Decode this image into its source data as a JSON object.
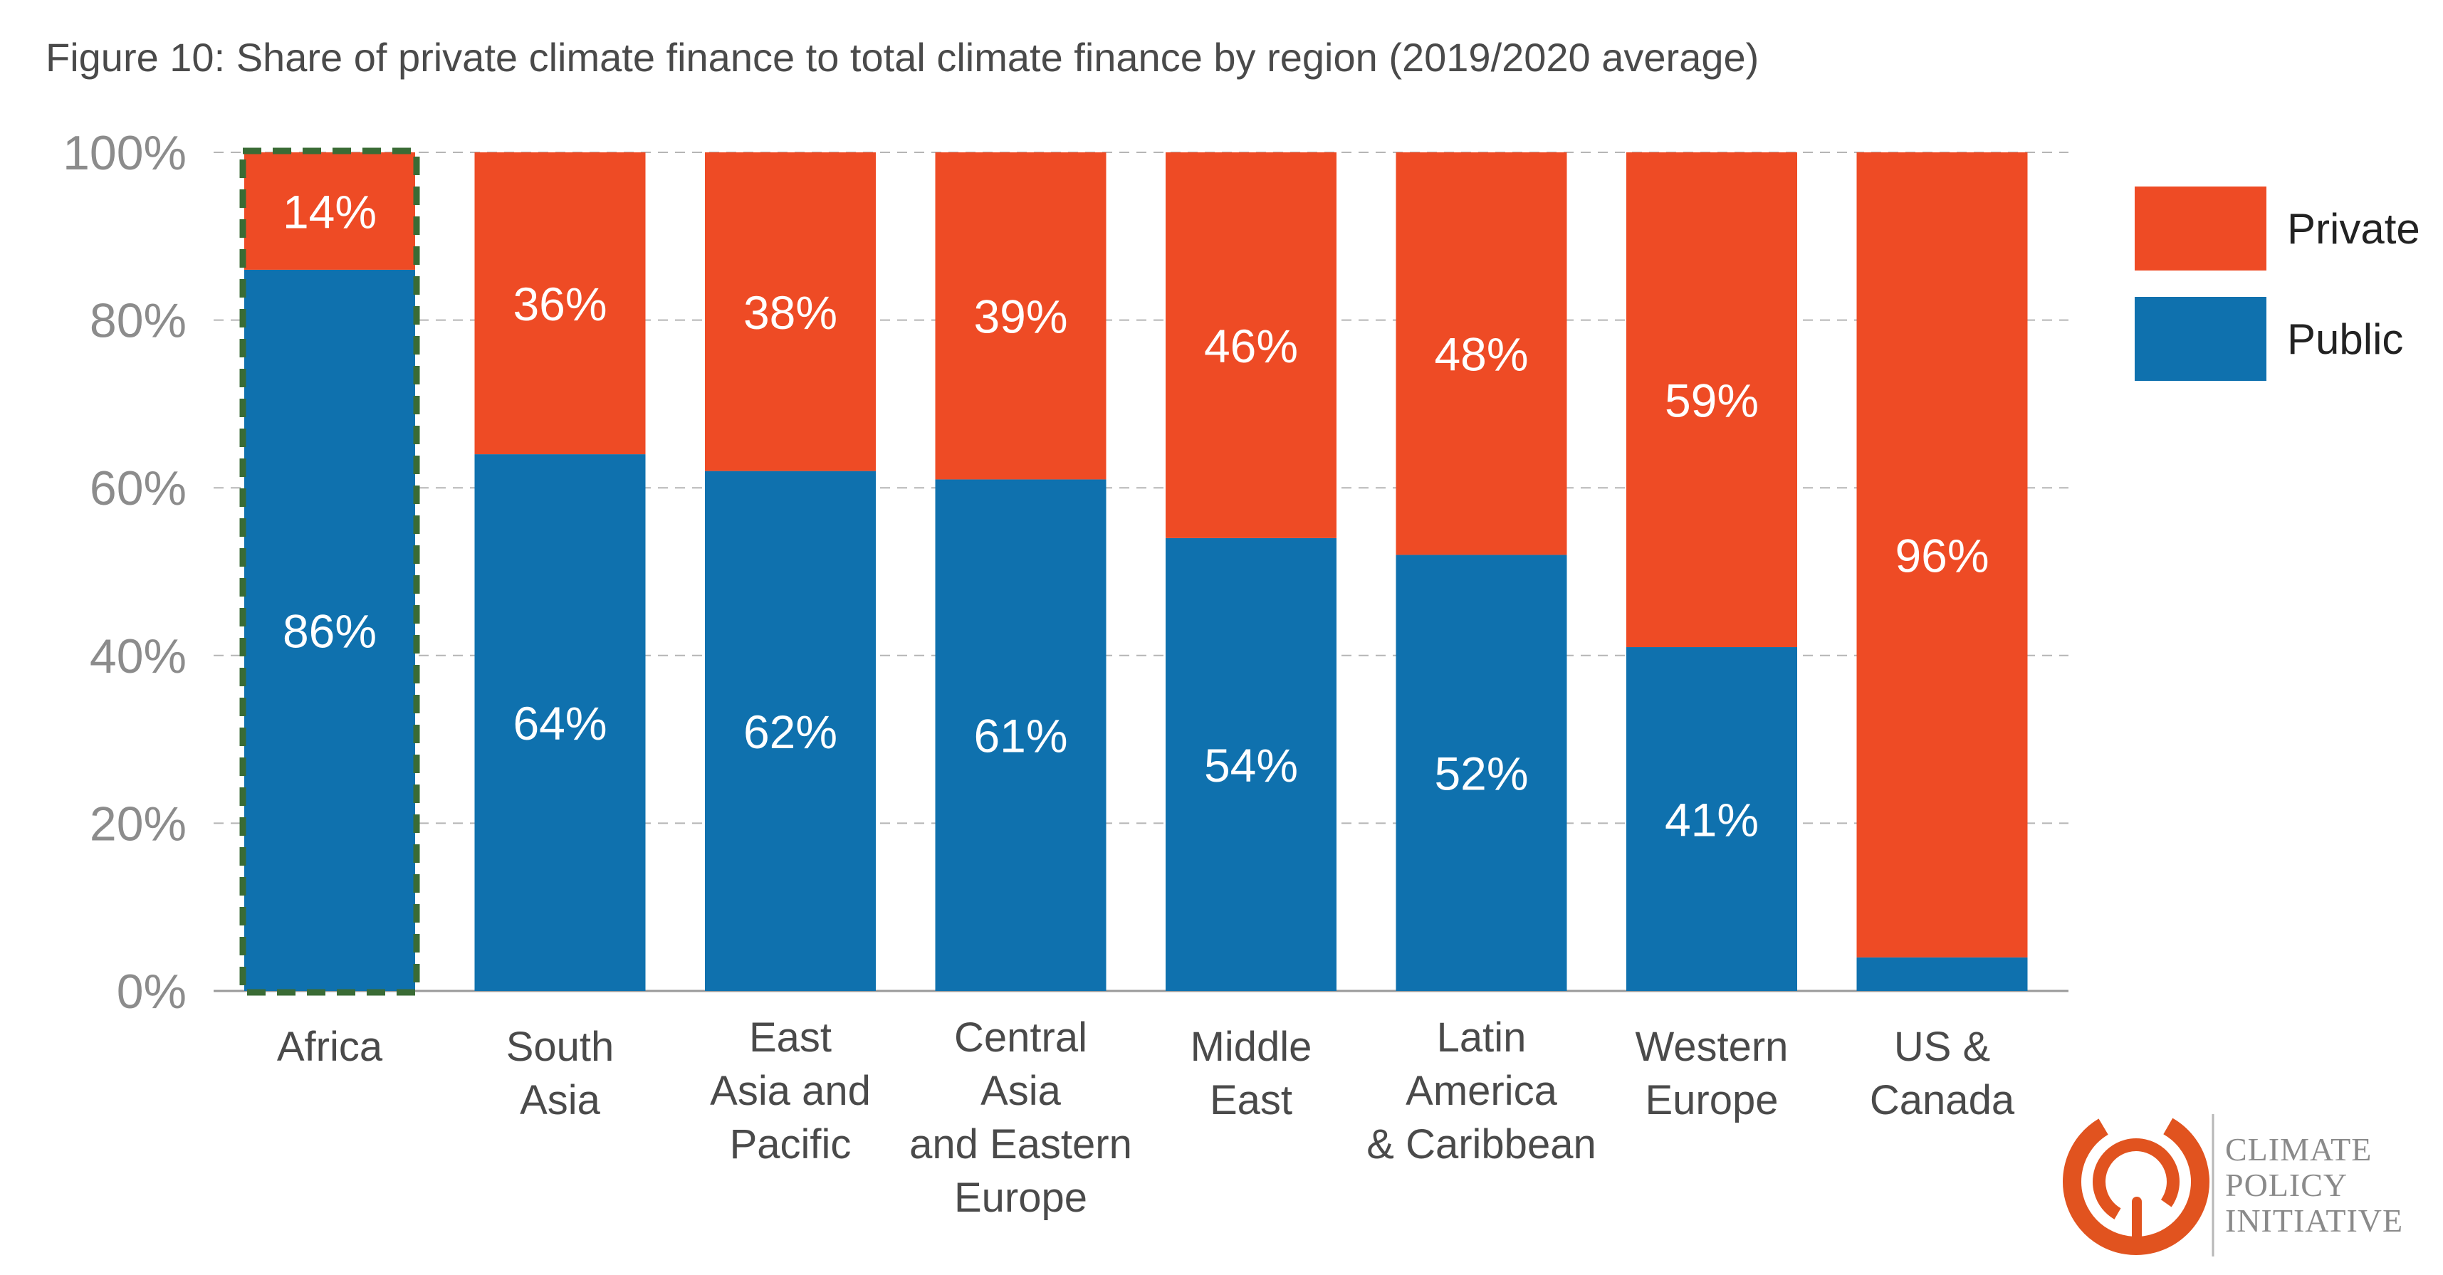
{
  "chart_data": {
    "type": "bar",
    "stacked": true,
    "title": "Figure 10: Share of private climate finance to total climate finance by region (2019/2020 average)",
    "categories": [
      [
        "Africa"
      ],
      [
        "South",
        "Asia"
      ],
      [
        "East",
        "Asia and",
        "Pacific"
      ],
      [
        "Central",
        "Asia",
        "and Eastern",
        "Europe"
      ],
      [
        "Middle",
        "East"
      ],
      [
        "Latin",
        "America",
        "& Caribbean"
      ],
      [
        "Western",
        "Europe"
      ],
      [
        "US &",
        "Canada"
      ]
    ],
    "series": [
      {
        "name": "Public",
        "color": "#0f71ae",
        "values": [
          86,
          64,
          62,
          61,
          54,
          52,
          41,
          4
        ],
        "labels": [
          "86%",
          "64%",
          "62%",
          "61%",
          "54%",
          "52%",
          "41%",
          ""
        ]
      },
      {
        "name": "Private",
        "color": "#ee4b25",
        "values": [
          14,
          36,
          38,
          39,
          46,
          48,
          59,
          96
        ],
        "labels": [
          "14%",
          "36%",
          "38%",
          "39%",
          "46%",
          "48%",
          "59%",
          "96%"
        ]
      }
    ],
    "ylim": [
      0,
      100
    ],
    "yticks": [
      "0%",
      "20%",
      "40%",
      "60%",
      "80%",
      "100%"
    ],
    "grid": "horizontal-dashed",
    "legend": "right",
    "highlight": {
      "category_index": 0,
      "color": "#3a6b35",
      "style": "dashed"
    }
  },
  "logo": {
    "lines": [
      "CLIMATE",
      "POLICY",
      "INITIATIVE"
    ],
    "icon": "circular-swirl-logo-icon",
    "color": "#e1531f"
  }
}
